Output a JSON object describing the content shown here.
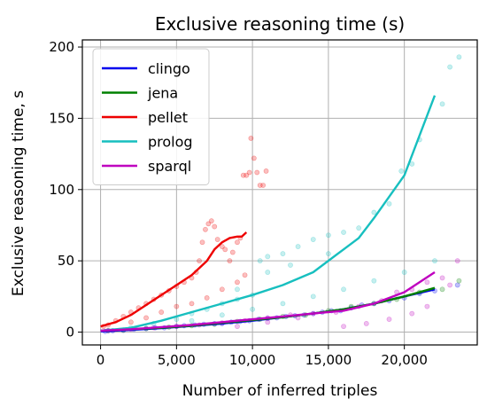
{
  "chart_data": {
    "type": "scatter",
    "title": "Exclusive reasoning time (s)",
    "xlabel": "Number of inferred triples",
    "ylabel": "Exclusive reasoning time, s",
    "xlim": [
      -1200,
      24800
    ],
    "ylim": [
      -9,
      205
    ],
    "xticks": [
      0,
      5000,
      10000,
      15000,
      20000
    ],
    "xtick_labels": [
      "0",
      "5,000",
      "10,000",
      "15,000",
      "20,000"
    ],
    "yticks": [
      0,
      50,
      100,
      150,
      200
    ],
    "ytick_labels": [
      "0",
      "50",
      "100",
      "150",
      "200"
    ],
    "grid": true,
    "legend_position": "upper-left",
    "series": [
      {
        "name": "clingo",
        "color": "#0000ee",
        "line": [
          [
            0,
            0.5
          ],
          [
            2000,
            1.5
          ],
          [
            4000,
            2.8
          ],
          [
            6000,
            4.3
          ],
          [
            8000,
            6
          ],
          [
            10000,
            8
          ],
          [
            12000,
            10.5
          ],
          [
            14000,
            13
          ],
          [
            16000,
            16
          ],
          [
            18000,
            20
          ],
          [
            20000,
            25
          ],
          [
            22000,
            30
          ]
        ],
        "points": [
          [
            300,
            0.5
          ],
          [
            800,
            1
          ],
          [
            1500,
            1.2
          ],
          [
            2200,
            2
          ],
          [
            3000,
            2.5
          ],
          [
            3600,
            3
          ],
          [
            4200,
            3
          ],
          [
            5000,
            4
          ],
          [
            5500,
            4.5
          ],
          [
            6200,
            5
          ],
          [
            6800,
            5.5
          ],
          [
            7500,
            6
          ],
          [
            8000,
            6
          ],
          [
            8600,
            7
          ],
          [
            9200,
            7.5
          ],
          [
            9800,
            8
          ],
          [
            10400,
            9
          ],
          [
            11000,
            9.5
          ],
          [
            11600,
            10
          ],
          [
            12200,
            11
          ],
          [
            12800,
            11.5
          ],
          [
            13400,
            12
          ],
          [
            14000,
            13
          ],
          [
            14600,
            14
          ],
          [
            15200,
            15
          ],
          [
            15800,
            15
          ],
          [
            16500,
            17
          ],
          [
            17200,
            19
          ],
          [
            18000,
            20
          ],
          [
            19000,
            22
          ],
          [
            20000,
            24
          ],
          [
            21000,
            27
          ],
          [
            22000,
            29
          ],
          [
            23500,
            33
          ]
        ]
      },
      {
        "name": "jena",
        "color": "#008000",
        "line": [
          [
            0,
            1
          ],
          [
            2000,
            2
          ],
          [
            4000,
            3
          ],
          [
            6000,
            4.5
          ],
          [
            8000,
            6.5
          ],
          [
            10000,
            8.5
          ],
          [
            12000,
            10.5
          ],
          [
            14000,
            13
          ],
          [
            16000,
            16
          ],
          [
            18000,
            20
          ],
          [
            20000,
            25
          ],
          [
            22000,
            31
          ]
        ],
        "points": [
          [
            500,
            1
          ],
          [
            1500,
            1.5
          ],
          [
            3000,
            2.5
          ],
          [
            4500,
            3.5
          ],
          [
            6000,
            4.5
          ],
          [
            7500,
            5.5
          ],
          [
            9000,
            7.5
          ],
          [
            10500,
            9
          ],
          [
            12000,
            11
          ],
          [
            13500,
            12
          ],
          [
            15000,
            15
          ],
          [
            16500,
            18
          ],
          [
            18000,
            20
          ],
          [
            19500,
            23
          ],
          [
            21000,
            28
          ],
          [
            22500,
            30
          ],
          [
            23600,
            36
          ]
        ]
      },
      {
        "name": "pellet",
        "color": "#ee0000",
        "line": [
          [
            0,
            4
          ],
          [
            1000,
            7
          ],
          [
            2000,
            12
          ],
          [
            3000,
            19
          ],
          [
            4000,
            26
          ],
          [
            5000,
            33
          ],
          [
            6000,
            40
          ],
          [
            7000,
            50
          ],
          [
            7500,
            58
          ],
          [
            8000,
            63
          ],
          [
            8500,
            66
          ],
          [
            9000,
            67
          ],
          [
            9300,
            67
          ],
          [
            9600,
            70
          ]
        ],
        "points": [
          [
            200,
            4
          ],
          [
            500,
            5
          ],
          [
            1000,
            8
          ],
          [
            1500,
            11
          ],
          [
            2000,
            14
          ],
          [
            2500,
            17
          ],
          [
            3000,
            20
          ],
          [
            3500,
            23
          ],
          [
            4000,
            26
          ],
          [
            4500,
            29
          ],
          [
            5000,
            32
          ],
          [
            5500,
            35
          ],
          [
            6000,
            38
          ],
          [
            6300,
            42
          ],
          [
            6500,
            50
          ],
          [
            6700,
            63
          ],
          [
            6900,
            72
          ],
          [
            7100,
            76
          ],
          [
            7300,
            78
          ],
          [
            7500,
            74
          ],
          [
            7700,
            65
          ],
          [
            8000,
            60
          ],
          [
            8200,
            58
          ],
          [
            8500,
            50
          ],
          [
            8700,
            56
          ],
          [
            9000,
            63
          ],
          [
            9200,
            66
          ],
          [
            9400,
            110
          ],
          [
            9600,
            110
          ],
          [
            9800,
            112
          ],
          [
            9900,
            136
          ],
          [
            10100,
            122
          ],
          [
            10300,
            112
          ],
          [
            10500,
            103
          ],
          [
            10700,
            103
          ],
          [
            10900,
            113
          ],
          [
            2000,
            7
          ],
          [
            3000,
            10
          ],
          [
            4000,
            14
          ],
          [
            5000,
            18
          ],
          [
            6000,
            20
          ],
          [
            7000,
            24
          ],
          [
            8000,
            30
          ],
          [
            9000,
            35
          ],
          [
            9500,
            40
          ]
        ]
      },
      {
        "name": "prolog",
        "color": "#17bfbf",
        "line": [
          [
            0,
            1
          ],
          [
            2000,
            3
          ],
          [
            4000,
            8
          ],
          [
            6000,
            14
          ],
          [
            8000,
            20
          ],
          [
            10000,
            26
          ],
          [
            12000,
            33
          ],
          [
            14000,
            42
          ],
          [
            16000,
            58
          ],
          [
            17000,
            66
          ],
          [
            18000,
            80
          ],
          [
            20000,
            110
          ],
          [
            22000,
            166
          ]
        ],
        "points": [
          [
            500,
            1
          ],
          [
            2000,
            3
          ],
          [
            3500,
            6
          ],
          [
            5000,
            9
          ],
          [
            6000,
            13
          ],
          [
            7000,
            16
          ],
          [
            8000,
            20
          ],
          [
            9000,
            23
          ],
          [
            10000,
            26
          ],
          [
            10500,
            50
          ],
          [
            11000,
            53
          ],
          [
            12000,
            55
          ],
          [
            13000,
            60
          ],
          [
            14000,
            65
          ],
          [
            15000,
            68
          ],
          [
            16000,
            70
          ],
          [
            17000,
            73
          ],
          [
            18000,
            84
          ],
          [
            19000,
            90
          ],
          [
            19800,
            113
          ],
          [
            20500,
            118
          ],
          [
            21000,
            135
          ],
          [
            22500,
            160
          ],
          [
            23000,
            186
          ],
          [
            23600,
            193
          ],
          [
            6000,
            8
          ],
          [
            8000,
            12
          ],
          [
            10000,
            16
          ],
          [
            12000,
            20
          ],
          [
            14000,
            25
          ],
          [
            16000,
            30
          ],
          [
            18000,
            36
          ],
          [
            20000,
            42
          ],
          [
            22000,
            50
          ],
          [
            9000,
            30
          ],
          [
            11000,
            42
          ],
          [
            12500,
            47
          ],
          [
            15000,
            55
          ]
        ]
      },
      {
        "name": "sparql",
        "color": "#bf00bf",
        "line": [
          [
            0,
            1
          ],
          [
            2000,
            2
          ],
          [
            4000,
            3.5
          ],
          [
            6000,
            5
          ],
          [
            8000,
            7
          ],
          [
            10000,
            9
          ],
          [
            12000,
            11
          ],
          [
            14000,
            13
          ],
          [
            16000,
            15
          ],
          [
            18000,
            20
          ],
          [
            20000,
            28
          ],
          [
            22000,
            42
          ]
        ],
        "points": [
          [
            500,
            1
          ],
          [
            2000,
            2
          ],
          [
            3500,
            3
          ],
          [
            5000,
            4
          ],
          [
            6500,
            5
          ],
          [
            8000,
            6.5
          ],
          [
            9500,
            8
          ],
          [
            11000,
            10
          ],
          [
            12500,
            12
          ],
          [
            14000,
            13
          ],
          [
            15500,
            14
          ],
          [
            17000,
            18
          ],
          [
            18500,
            22
          ],
          [
            19500,
            28
          ],
          [
            20500,
            30
          ],
          [
            21500,
            35
          ],
          [
            22500,
            38
          ],
          [
            23500,
            50
          ],
          [
            16000,
            4
          ],
          [
            17500,
            6
          ],
          [
            19000,
            9
          ],
          [
            20500,
            13
          ],
          [
            21500,
            18
          ],
          [
            23000,
            33
          ],
          [
            9000,
            4
          ],
          [
            11000,
            7
          ],
          [
            13000,
            10
          ]
        ]
      }
    ]
  }
}
